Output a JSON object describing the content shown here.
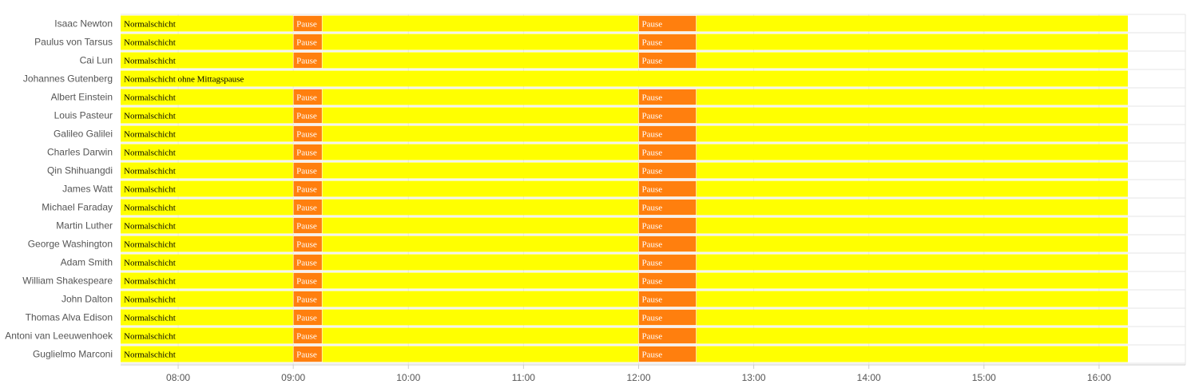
{
  "chart_data": {
    "type": "timeline",
    "title": "",
    "xlabel": "",
    "ylabel": "",
    "x_range": [
      "07:30",
      "16:45"
    ],
    "x_ticks": [
      "08:00",
      "09:00",
      "10:00",
      "11:00",
      "12:00",
      "13:00",
      "14:00",
      "15:00",
      "16:00"
    ],
    "grid": true,
    "colors": {
      "shift": "#ffff00",
      "pause": "#ff7f0e",
      "grid": "#e6e6e6",
      "axis": "#cccccc",
      "shift_text": "#000000",
      "pause_text": "#ffffff"
    },
    "rows": [
      {
        "name": "Isaac Newton",
        "segments": [
          {
            "label": "Normalschicht",
            "kind": "shift",
            "start": "07:30",
            "end": "16:15"
          },
          {
            "label": "Pause",
            "kind": "pause",
            "start": "09:00",
            "end": "09:15"
          },
          {
            "label": "Pause",
            "kind": "pause",
            "start": "12:00",
            "end": "12:30"
          }
        ]
      },
      {
        "name": "Paulus von Tarsus",
        "segments": [
          {
            "label": "Normalschicht",
            "kind": "shift",
            "start": "07:30",
            "end": "16:15"
          },
          {
            "label": "Pause",
            "kind": "pause",
            "start": "09:00",
            "end": "09:15"
          },
          {
            "label": "Pause",
            "kind": "pause",
            "start": "12:00",
            "end": "12:30"
          }
        ]
      },
      {
        "name": "Cai Lun",
        "segments": [
          {
            "label": "Normalschicht",
            "kind": "shift",
            "start": "07:30",
            "end": "16:15"
          },
          {
            "label": "Pause",
            "kind": "pause",
            "start": "09:00",
            "end": "09:15"
          },
          {
            "label": "Pause",
            "kind": "pause",
            "start": "12:00",
            "end": "12:30"
          }
        ]
      },
      {
        "name": "Johannes Gutenberg",
        "segments": [
          {
            "label": "Normalschicht ohne Mittagspause",
            "kind": "shift",
            "start": "07:30",
            "end": "16:15"
          }
        ]
      },
      {
        "name": "Albert Einstein",
        "segments": [
          {
            "label": "Normalschicht",
            "kind": "shift",
            "start": "07:30",
            "end": "16:15"
          },
          {
            "label": "Pause",
            "kind": "pause",
            "start": "09:00",
            "end": "09:15"
          },
          {
            "label": "Pause",
            "kind": "pause",
            "start": "12:00",
            "end": "12:30"
          }
        ]
      },
      {
        "name": "Louis Pasteur",
        "segments": [
          {
            "label": "Normalschicht",
            "kind": "shift",
            "start": "07:30",
            "end": "16:15"
          },
          {
            "label": "Pause",
            "kind": "pause",
            "start": "09:00",
            "end": "09:15"
          },
          {
            "label": "Pause",
            "kind": "pause",
            "start": "12:00",
            "end": "12:30"
          }
        ]
      },
      {
        "name": "Galileo Galilei",
        "segments": [
          {
            "label": "Normalschicht",
            "kind": "shift",
            "start": "07:30",
            "end": "16:15"
          },
          {
            "label": "Pause",
            "kind": "pause",
            "start": "09:00",
            "end": "09:15"
          },
          {
            "label": "Pause",
            "kind": "pause",
            "start": "12:00",
            "end": "12:30"
          }
        ]
      },
      {
        "name": "Charles Darwin",
        "segments": [
          {
            "label": "Normalschicht",
            "kind": "shift",
            "start": "07:30",
            "end": "16:15"
          },
          {
            "label": "Pause",
            "kind": "pause",
            "start": "09:00",
            "end": "09:15"
          },
          {
            "label": "Pause",
            "kind": "pause",
            "start": "12:00",
            "end": "12:30"
          }
        ]
      },
      {
        "name": "Qin Shihuangdi",
        "segments": [
          {
            "label": "Normalschicht",
            "kind": "shift",
            "start": "07:30",
            "end": "16:15"
          },
          {
            "label": "Pause",
            "kind": "pause",
            "start": "09:00",
            "end": "09:15"
          },
          {
            "label": "Pause",
            "kind": "pause",
            "start": "12:00",
            "end": "12:30"
          }
        ]
      },
      {
        "name": "James Watt",
        "segments": [
          {
            "label": "Normalschicht",
            "kind": "shift",
            "start": "07:30",
            "end": "16:15"
          },
          {
            "label": "Pause",
            "kind": "pause",
            "start": "09:00",
            "end": "09:15"
          },
          {
            "label": "Pause",
            "kind": "pause",
            "start": "12:00",
            "end": "12:30"
          }
        ]
      },
      {
        "name": "Michael Faraday",
        "segments": [
          {
            "label": "Normalschicht",
            "kind": "shift",
            "start": "07:30",
            "end": "16:15"
          },
          {
            "label": "Pause",
            "kind": "pause",
            "start": "09:00",
            "end": "09:15"
          },
          {
            "label": "Pause",
            "kind": "pause",
            "start": "12:00",
            "end": "12:30"
          }
        ]
      },
      {
        "name": "Martin Luther",
        "segments": [
          {
            "label": "Normalschicht",
            "kind": "shift",
            "start": "07:30",
            "end": "16:15"
          },
          {
            "label": "Pause",
            "kind": "pause",
            "start": "09:00",
            "end": "09:15"
          },
          {
            "label": "Pause",
            "kind": "pause",
            "start": "12:00",
            "end": "12:30"
          }
        ]
      },
      {
        "name": "George Washington",
        "segments": [
          {
            "label": "Normalschicht",
            "kind": "shift",
            "start": "07:30",
            "end": "16:15"
          },
          {
            "label": "Pause",
            "kind": "pause",
            "start": "09:00",
            "end": "09:15"
          },
          {
            "label": "Pause",
            "kind": "pause",
            "start": "12:00",
            "end": "12:30"
          }
        ]
      },
      {
        "name": "Adam Smith",
        "segments": [
          {
            "label": "Normalschicht",
            "kind": "shift",
            "start": "07:30",
            "end": "16:15"
          },
          {
            "label": "Pause",
            "kind": "pause",
            "start": "09:00",
            "end": "09:15"
          },
          {
            "label": "Pause",
            "kind": "pause",
            "start": "12:00",
            "end": "12:30"
          }
        ]
      },
      {
        "name": "William Shakespeare",
        "segments": [
          {
            "label": "Normalschicht",
            "kind": "shift",
            "start": "07:30",
            "end": "16:15"
          },
          {
            "label": "Pause",
            "kind": "pause",
            "start": "09:00",
            "end": "09:15"
          },
          {
            "label": "Pause",
            "kind": "pause",
            "start": "12:00",
            "end": "12:30"
          }
        ]
      },
      {
        "name": "John Dalton",
        "segments": [
          {
            "label": "Normalschicht",
            "kind": "shift",
            "start": "07:30",
            "end": "16:15"
          },
          {
            "label": "Pause",
            "kind": "pause",
            "start": "09:00",
            "end": "09:15"
          },
          {
            "label": "Pause",
            "kind": "pause",
            "start": "12:00",
            "end": "12:30"
          }
        ]
      },
      {
        "name": "Thomas Alva Edison",
        "segments": [
          {
            "label": "Normalschicht",
            "kind": "shift",
            "start": "07:30",
            "end": "16:15"
          },
          {
            "label": "Pause",
            "kind": "pause",
            "start": "09:00",
            "end": "09:15"
          },
          {
            "label": "Pause",
            "kind": "pause",
            "start": "12:00",
            "end": "12:30"
          }
        ]
      },
      {
        "name": "Antoni van Leeuwenhoek",
        "segments": [
          {
            "label": "Normalschicht",
            "kind": "shift",
            "start": "07:30",
            "end": "16:15"
          },
          {
            "label": "Pause",
            "kind": "pause",
            "start": "09:00",
            "end": "09:15"
          },
          {
            "label": "Pause",
            "kind": "pause",
            "start": "12:00",
            "end": "12:30"
          }
        ]
      },
      {
        "name": "Guglielmo Marconi",
        "segments": [
          {
            "label": "Normalschicht",
            "kind": "shift",
            "start": "07:30",
            "end": "16:15"
          },
          {
            "label": "Pause",
            "kind": "pause",
            "start": "09:00",
            "end": "09:15"
          },
          {
            "label": "Pause",
            "kind": "pause",
            "start": "12:00",
            "end": "12:30"
          }
        ]
      }
    ]
  }
}
